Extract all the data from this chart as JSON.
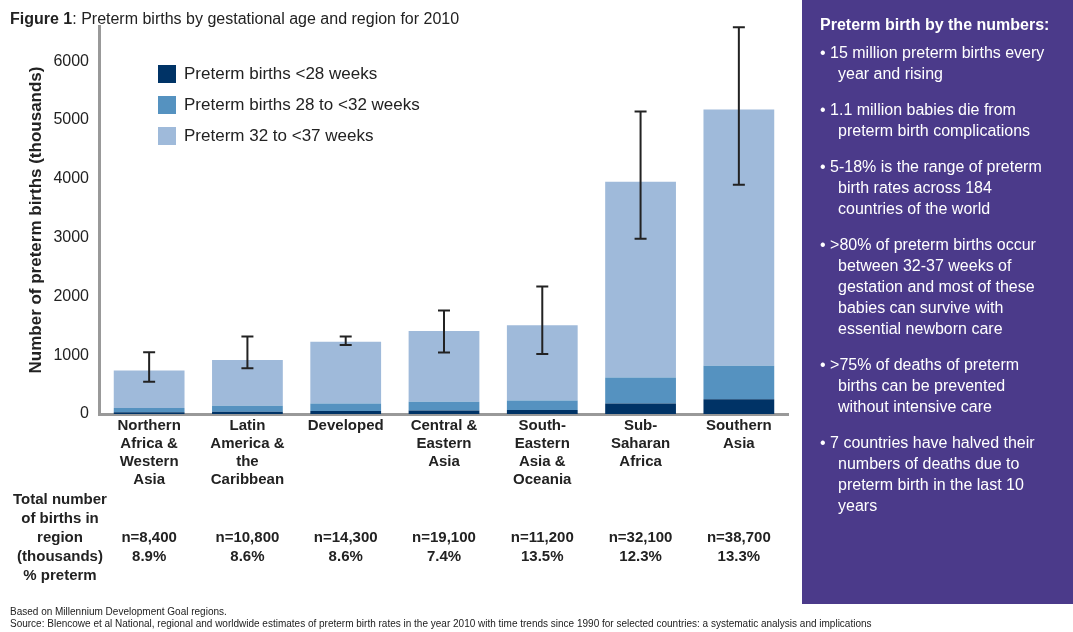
{
  "chart_data": [
    {
      "type": "bar",
      "title": "Figure 1: Preterm births by gestational age and region for 2010",
      "ylabel": "Number of preterm births (thousands)",
      "categories": [
        "Northern Africa & Western Asia",
        "Latin America & the Caribbean",
        "Developed",
        "Central & Eastern Asia",
        "South-Eastern Asia & Oceania",
        "Sub-Saharan Africa",
        "Southern Asia"
      ],
      "stacked": true,
      "series": [
        {
          "name": "Preterm births <28 weeks",
          "color": "#003366",
          "values": [
            30,
            40,
            50,
            60,
            70,
            180,
            250
          ]
        },
        {
          "name": "Preterm births 28 to <32 weeks",
          "color": "#5592c0",
          "values": [
            70,
            100,
            130,
            150,
            160,
            440,
            570
          ]
        },
        {
          "name": "Preterm 32 to <37 weeks",
          "color": "#9fbada",
          "values": [
            640,
            780,
            1050,
            1200,
            1280,
            3330,
            4360
          ],
          "errors": [
            [
              550,
              1050
            ],
            [
              780,
              1320
            ],
            [
              1175,
              1320
            ],
            [
              1045,
              1760
            ],
            [
              1020,
              2170
            ],
            [
              2980,
              5145
            ],
            [
              3900,
              6580
            ]
          ]
        }
      ],
      "ylim": [
        0,
        6600
      ],
      "yticks": [
        0,
        1000,
        2000,
        3000,
        4000,
        5000,
        6000
      ],
      "grid": false,
      "legend": "top left",
      "annotations": [
        "Total number of births in region (thousands) % preterm",
        "n=8,400\n8.9%",
        "n=10,800\n8.6%",
        "n=14,300\n8.6%",
        "n=19,100\n7.4%",
        "n=11,200\n13.5%",
        "n=32,100\n12.3%",
        "n=38,700\n13.3%",
        "Based on Millennium Development Goal regions.",
        "Source: Blencowe et al National, regional and worldwide estimates of preterm birth rates in the year 2010 with time trends since 1990 for selected countries: a systematic analysis and implications"
      ]
    },
    {
      "type": "other",
      "title": "Preterm birth by the numbers:",
      "annotations": [
        "• 15 million preterm births every year and rising",
        "• 1.1 million babies die from preterm birth complications",
        "• 5-18% is the range of preterm birth rates across 184 countries of the world",
        "• >80% of preterm births occur between 32-37 weeks of gestation and most of these babies can survive with essential newborn care",
        "• >75% of deaths of preterm births can be prevented without intensive care",
        "• 7 countries have halved their numbers of deaths due to preterm birth in the last 10 years"
      ]
    }
  ]
}
